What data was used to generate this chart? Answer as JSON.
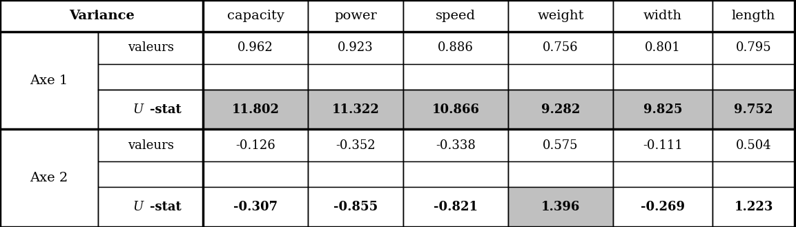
{
  "col_variables": [
    "capacity",
    "power",
    "speed",
    "weight",
    "width",
    "length"
  ],
  "rows": [
    {
      "axis": "Axe 1",
      "valeurs": [
        "0.962",
        "0.923",
        "0.886",
        "0.756",
        "0.801",
        "0.795"
      ],
      "ustat": [
        "11.802",
        "11.322",
        "10.866",
        "9.282",
        "9.825",
        "9.752"
      ],
      "ustat_bg": "all"
    },
    {
      "axis": "Axe 2",
      "valeurs": [
        "-0.126",
        "-0.352",
        "-0.338",
        "0.575",
        "-0.111",
        "0.504"
      ],
      "ustat": [
        "-0.307",
        "-0.855",
        "-0.821",
        "1.396",
        "-0.269",
        "1.223"
      ],
      "ustat_bg": "weight_only"
    }
  ],
  "gray_color": "#c0c0c0",
  "bg_color": "#ffffff",
  "lw_thin": 1.0,
  "lw_thick": 2.5,
  "font_size_header": 14,
  "font_size_data": 13,
  "font_size_label": 13
}
